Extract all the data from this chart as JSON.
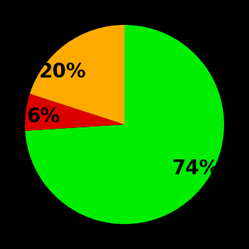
{
  "slices": [
    74,
    6,
    20
  ],
  "labels": [
    "74%",
    "6%",
    "20%"
  ],
  "colors": [
    "#00ee00",
    "#dd0000",
    "#ffaa00"
  ],
  "background_color": "#000000",
  "startangle": 90,
  "counterclock": false,
  "figsize": [
    3.5,
    3.5
  ],
  "dpi": 100,
  "label_fontsize": 20,
  "label_fontweight": "bold",
  "labeldistance": 0.65
}
